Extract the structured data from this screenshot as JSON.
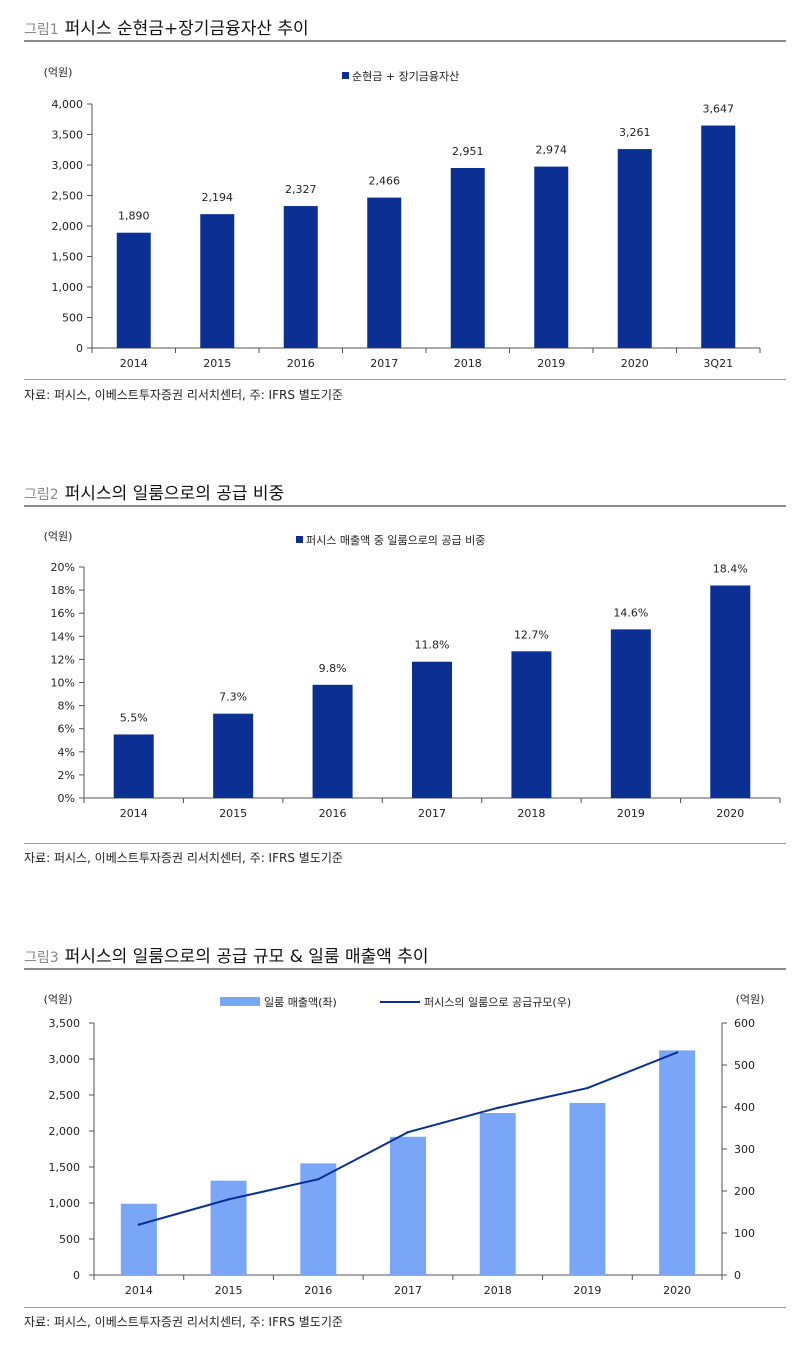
{
  "figures": [
    {
      "label": "그림1",
      "title": "퍼시스 순현금+장기금융자산 추이",
      "source": "자료: 퍼시스, 이베스트투자증권 리서치센터, 주: IFRS 별도기준"
    },
    {
      "label": "그림2",
      "title": "퍼시스의 일룸으로의 공급 비중",
      "source": "자료: 퍼시스, 이베스트투자증권 리서치센터, 주: IFRS 별도기준"
    },
    {
      "label": "그림3",
      "title": "퍼시스의 일룸으로의 공급 규모 & 일룸 매출액 추이",
      "source": "자료: 퍼시스, 이베스트투자증권 리서치센터, 주: IFRS 별도기준"
    }
  ],
  "chart_data": [
    {
      "type": "bar",
      "title": "퍼시스 순현금+장기금융자산 추이",
      "unit_label": "(억원)",
      "categories": [
        "2014",
        "2015",
        "2016",
        "2017",
        "2018",
        "2019",
        "2020",
        "3Q21"
      ],
      "series": [
        {
          "name": "순현금 + 장기금융자산",
          "values": [
            1890,
            2194,
            2327,
            2466,
            2951,
            2974,
            3261,
            3647
          ],
          "color": "#0b2f93"
        }
      ],
      "data_labels": [
        "1,890",
        "2,194",
        "2,327",
        "2,466",
        "2,951",
        "2,974",
        "3,261",
        "3,647"
      ],
      "ylim": [
        0,
        4000
      ],
      "yticks": [
        0,
        500,
        1000,
        1500,
        2000,
        2500,
        3000,
        3500,
        4000
      ],
      "ytick_labels": [
        "0",
        "500",
        "1,000",
        "1,500",
        "2,000",
        "2,500",
        "3,000",
        "3,500",
        "4,000"
      ],
      "legend": "top-center",
      "grid": false
    },
    {
      "type": "bar",
      "title": "퍼시스의 일룸으로의 공급 비중",
      "unit_label": "(억원)",
      "categories": [
        "2014",
        "2015",
        "2016",
        "2017",
        "2018",
        "2019",
        "2020"
      ],
      "series": [
        {
          "name": "퍼시스 매출액 중 일룸으로의 공급 비중",
          "values": [
            5.5,
            7.3,
            9.8,
            11.8,
            12.7,
            14.6,
            18.4
          ],
          "color": "#0b2f93"
        }
      ],
      "data_labels": [
        "5.5%",
        "7.3%",
        "9.8%",
        "11.8%",
        "12.7%",
        "14.6%",
        "18.4%"
      ],
      "ylim": [
        0,
        20
      ],
      "yticks": [
        0,
        2,
        4,
        6,
        8,
        10,
        12,
        14,
        16,
        18,
        20
      ],
      "ytick_labels": [
        "0%",
        "2%",
        "4%",
        "6%",
        "8%",
        "10%",
        "12%",
        "14%",
        "16%",
        "18%",
        "20%"
      ],
      "legend": "top-center",
      "grid": false
    },
    {
      "type": "bar",
      "title": "퍼시스의 일룸으로의 공급 규모 & 일룸 매출액 추이",
      "unit_label_left": "(억원)",
      "unit_label_right": "(억원)",
      "categories": [
        "2014",
        "2015",
        "2016",
        "2017",
        "2018",
        "2019",
        "2020"
      ],
      "series": [
        {
          "name": "일룸 매출액(좌)",
          "kind": "bar",
          "axis": "left",
          "values": [
            990,
            1310,
            1550,
            1920,
            2250,
            2390,
            3120
          ],
          "color": "#7aa6f7"
        },
        {
          "name": "퍼시스의 일룸으로 공급규모(우)",
          "kind": "line",
          "axis": "right",
          "values": [
            120,
            180,
            228,
            340,
            398,
            445,
            530
          ],
          "color": "#0b2f93"
        }
      ],
      "ylim_left": [
        0,
        3500
      ],
      "yticks_left": [
        0,
        500,
        1000,
        1500,
        2000,
        2500,
        3000,
        3500
      ],
      "ytick_labels_left": [
        "0",
        "500",
        "1,000",
        "1,500",
        "2,000",
        "2,500",
        "3,000",
        "3,500"
      ],
      "ylim_right": [
        0,
        600
      ],
      "yticks_right": [
        0,
        100,
        200,
        300,
        400,
        500,
        600
      ],
      "ytick_labels_right": [
        "0",
        "100",
        "200",
        "300",
        "400",
        "500",
        "600"
      ],
      "legend": "top-center",
      "grid": false
    }
  ]
}
